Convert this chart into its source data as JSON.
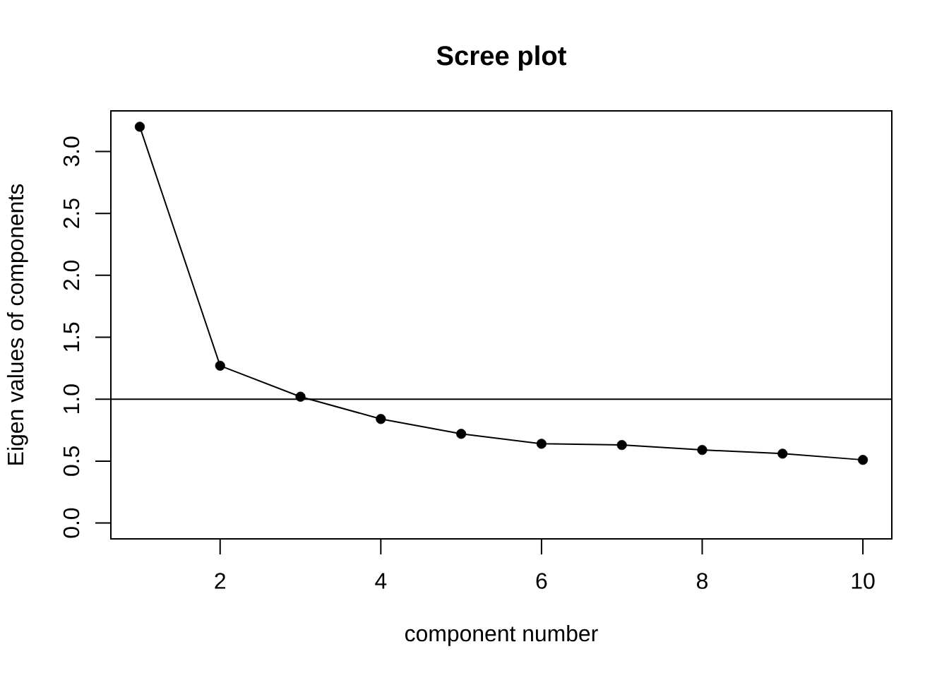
{
  "chart_data": {
    "type": "line",
    "title": "Scree plot",
    "xlabel": "component number",
    "ylabel": "Eigen values of components",
    "x": [
      1,
      2,
      3,
      4,
      5,
      6,
      7,
      8,
      9,
      10
    ],
    "values": [
      3.2,
      1.27,
      1.02,
      0.84,
      0.72,
      0.64,
      0.63,
      0.59,
      0.56,
      0.51
    ],
    "color": "#000000",
    "marker": "circle",
    "xlim": [
      0.64,
      10.36
    ],
    "ylim": [
      -0.128,
      3.328
    ],
    "xticks": [
      2,
      4,
      6,
      8,
      10
    ],
    "yticks": [
      {
        "value": 0,
        "label": "0.0"
      },
      0.5,
      {
        "value": 1,
        "label": "1.0"
      },
      1.5,
      {
        "value": 2,
        "label": "2.0"
      },
      2.5,
      {
        "value": 3,
        "label": "3.0"
      }
    ],
    "ref_lines": [
      {
        "axis": "y",
        "value": 1,
        "color": "#000000"
      }
    ]
  }
}
